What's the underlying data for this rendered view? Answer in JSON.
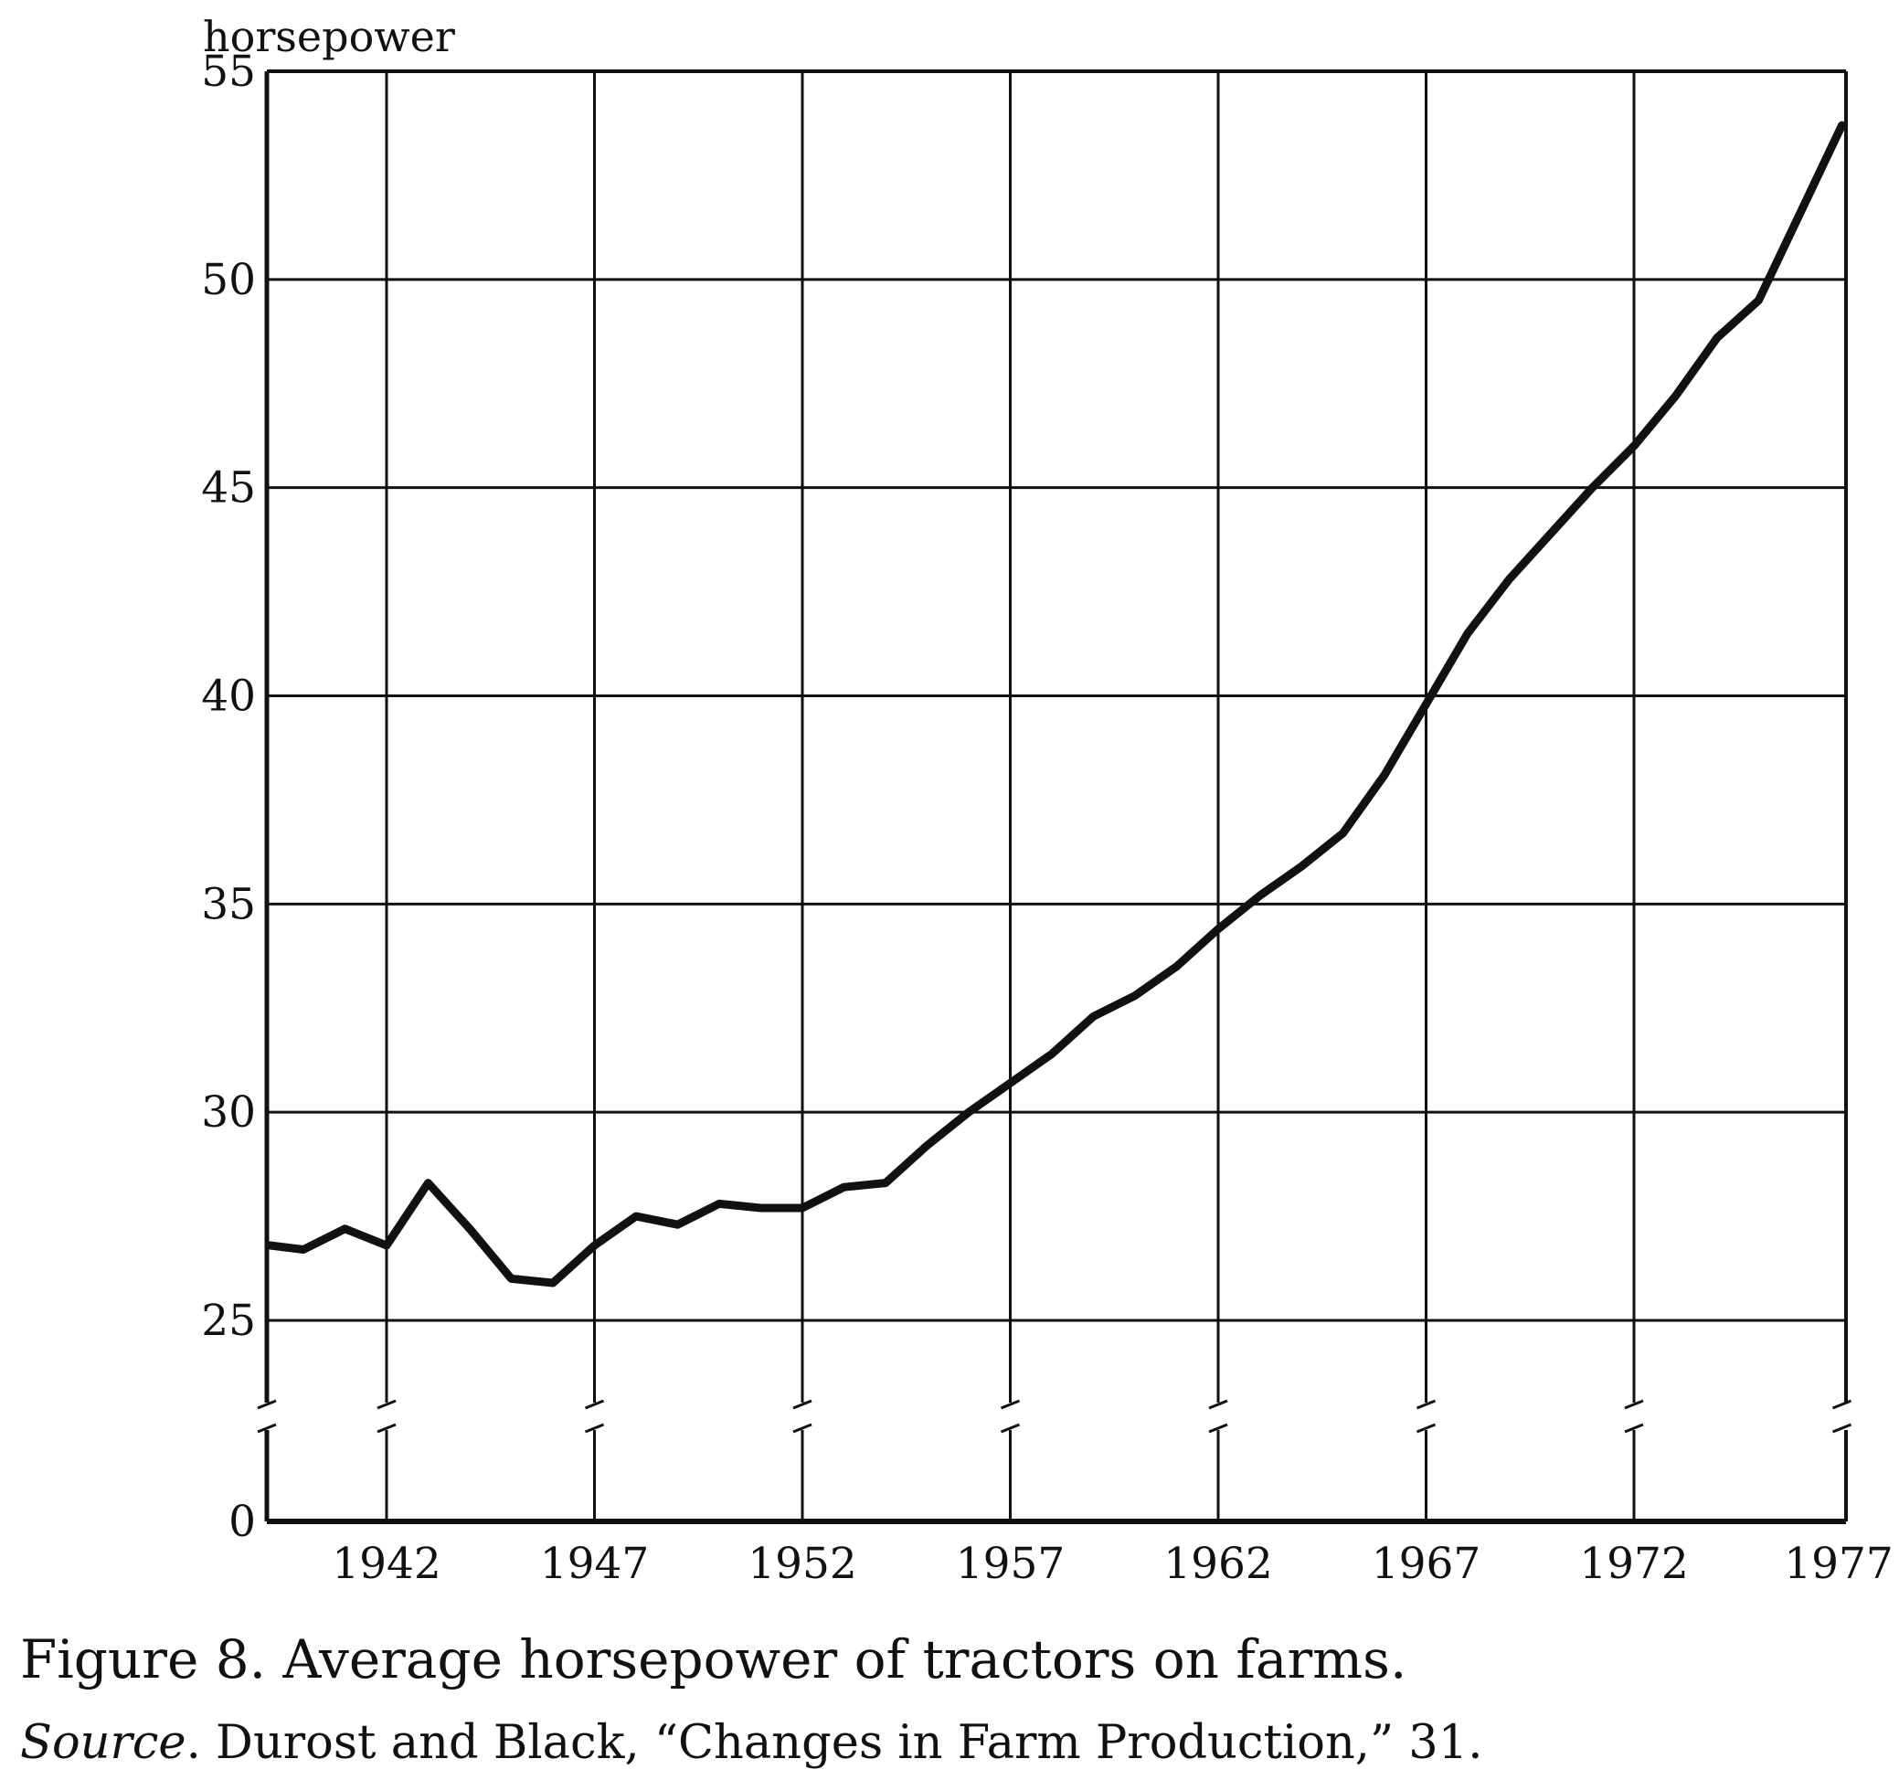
{
  "chart_data": {
    "type": "line",
    "title": "",
    "xlabel": "",
    "ylabel": "horsepower",
    "x_ticks": [
      "1942",
      "1947",
      "1952",
      "1957",
      "1962",
      "1967",
      "1972",
      "1977"
    ],
    "y_ticks": [
      "0",
      "25",
      "30",
      "35",
      "40",
      "45",
      "50",
      "55"
    ],
    "xlim": [
      1939.2,
      1977.1
    ],
    "ylim": [
      0,
      55
    ],
    "y_axis_break": [
      0,
      25
    ],
    "grid": true,
    "legend": "none",
    "line_color": "#111111",
    "series": [
      {
        "x": [
          1939.2,
          1940,
          1941,
          1942,
          1943,
          1944,
          1945,
          1946,
          1947,
          1948,
          1949,
          1950,
          1951,
          1952,
          1953,
          1954,
          1955,
          1956,
          1957,
          1958,
          1959,
          1960,
          1961,
          1962,
          1963,
          1964,
          1965,
          1966,
          1967,
          1968,
          1969,
          1970,
          1971,
          1972,
          1973,
          1974,
          1975,
          1976,
          1977
        ],
        "y": [
          26.8,
          26.7,
          27.2,
          26.8,
          28.3,
          27.2,
          26.0,
          25.9,
          26.8,
          27.5,
          27.3,
          27.8,
          27.7,
          27.7,
          28.2,
          28.3,
          29.2,
          30.0,
          30.7,
          31.4,
          32.3,
          32.8,
          33.5,
          34.4,
          35.2,
          35.9,
          36.7,
          38.1,
          39.8,
          41.5,
          42.8,
          43.9,
          45.0,
          46.0,
          47.2,
          48.6,
          49.5,
          51.6,
          53.7
        ]
      }
    ]
  },
  "caption": {
    "title": "Figure 8. Average horsepower of tractors on farms.",
    "source_label": "Source",
    "source_text": ". Durost and Black, “Changes in Farm Production,” 31."
  }
}
